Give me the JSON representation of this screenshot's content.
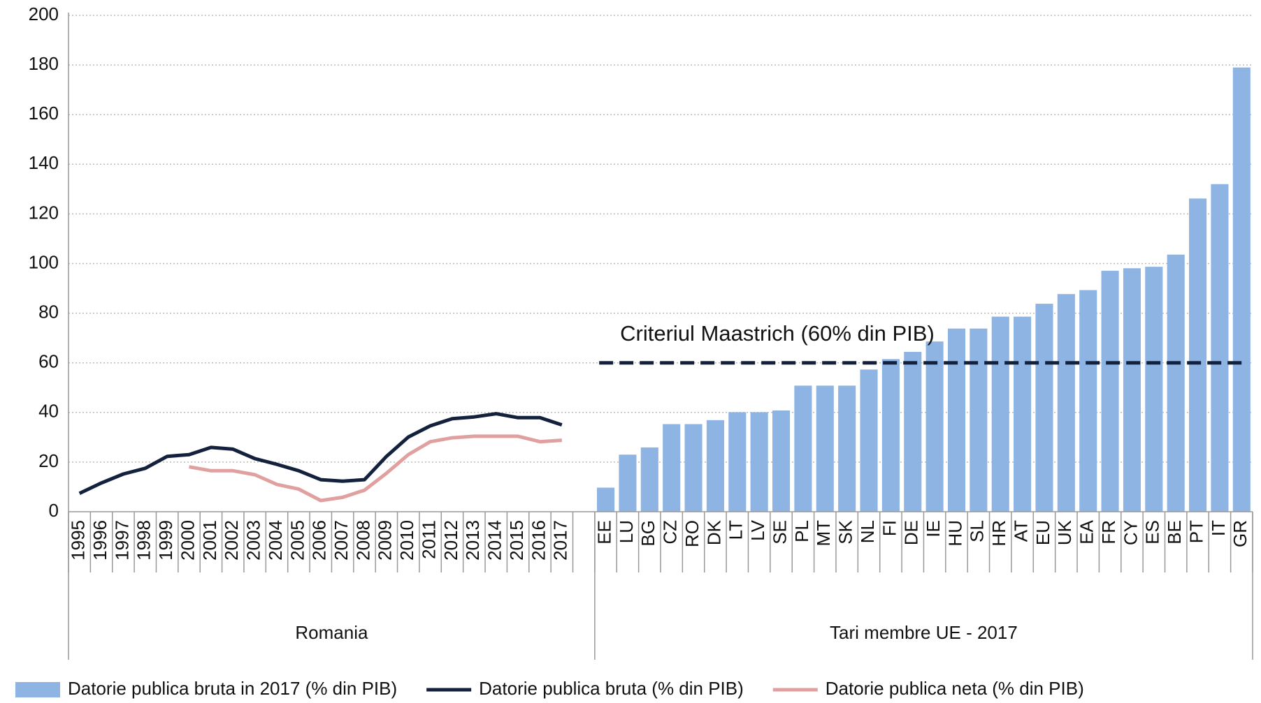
{
  "chart_data": {
    "type": "combo",
    "categories": [
      "1995",
      "1996",
      "1997",
      "1998",
      "1999",
      "2000",
      "2001",
      "2002",
      "2003",
      "2004",
      "2005",
      "2006",
      "2007",
      "2008",
      "2009",
      "2010",
      "2011",
      "2012",
      "2013",
      "2014",
      "2015",
      "2016",
      "2017",
      null,
      "EE",
      "LU",
      "BG",
      "CZ",
      "RO",
      "DK",
      "LT",
      "LV",
      "SE",
      "PL",
      "MT",
      "SK",
      "NL",
      "FI",
      "DE",
      "IE",
      "HU",
      "SL",
      "HR",
      "AT",
      "EU",
      "UK",
      "EA",
      "FR",
      "CY",
      "ES",
      "BE",
      "PT",
      "IT",
      "GR"
    ],
    "groups": [
      {
        "label": "Romania",
        "span": 24
      },
      {
        "label": "Tari membre UE - 2017",
        "span": 30
      }
    ],
    "series": [
      {
        "name": "Datorie publica bruta in 2017 (% din PIB)",
        "type": "bar",
        "color": "#8eb4e3",
        "values": [
          null,
          null,
          null,
          null,
          null,
          null,
          null,
          null,
          null,
          null,
          null,
          null,
          null,
          null,
          null,
          null,
          null,
          null,
          null,
          null,
          null,
          null,
          null,
          null,
          9.7,
          23,
          25.9,
          35.3,
          35.3,
          36.9,
          40.1,
          40.1,
          40.8,
          50.8,
          50.8,
          50.8,
          57.3,
          61.5,
          64.4,
          68.6,
          73.8,
          73.8,
          78.6,
          78.6,
          83.8,
          87.7,
          89.3,
          97.1,
          98.1,
          98.7,
          103.6,
          126.2,
          132,
          179
        ]
      },
      {
        "name": "Datorie publica bruta (% din PIB)",
        "type": "line",
        "color": "#14213d",
        "values": [
          7.4,
          11.6,
          15.2,
          17.5,
          22.3,
          23,
          25.9,
          25.2,
          21.4,
          19.1,
          16.5,
          12.9,
          12.3,
          12.9,
          22.3,
          30.1,
          34.6,
          37.5,
          38.2,
          39.5,
          37.9,
          37.9,
          35,
          null,
          null,
          null,
          null,
          null,
          null,
          null,
          null,
          null,
          null,
          null,
          null,
          null,
          null,
          null,
          null,
          null,
          null,
          null,
          null,
          null,
          null,
          null,
          null,
          null,
          null,
          null,
          null,
          null,
          null,
          null
        ]
      },
      {
        "name": "Datorie publica neta (% din PIB)",
        "type": "line",
        "color": "#e0a0a0",
        "values": [
          null,
          null,
          null,
          null,
          null,
          18.1,
          16.5,
          16.5,
          14.9,
          11,
          9.1,
          4.5,
          5.8,
          8.7,
          15.5,
          23,
          28.2,
          29.8,
          30.4,
          30.4,
          30.4,
          28.2,
          28.8,
          null,
          null,
          null,
          null,
          null,
          null,
          null,
          null,
          null,
          null,
          null,
          null,
          null,
          null,
          null,
          null,
          null,
          null,
          null,
          null,
          null,
          null,
          null,
          null,
          null,
          null,
          null,
          null,
          null,
          null,
          null
        ]
      }
    ],
    "reference_line": {
      "value": 60,
      "label": "Criteriul Maastrich (60% din PIB)",
      "color": "#14213d"
    },
    "ylim": [
      0,
      200
    ],
    "yticks": [
      0,
      20,
      40,
      60,
      80,
      100,
      120,
      140,
      160,
      180,
      200
    ],
    "grid": true,
    "legend": "bottom"
  }
}
